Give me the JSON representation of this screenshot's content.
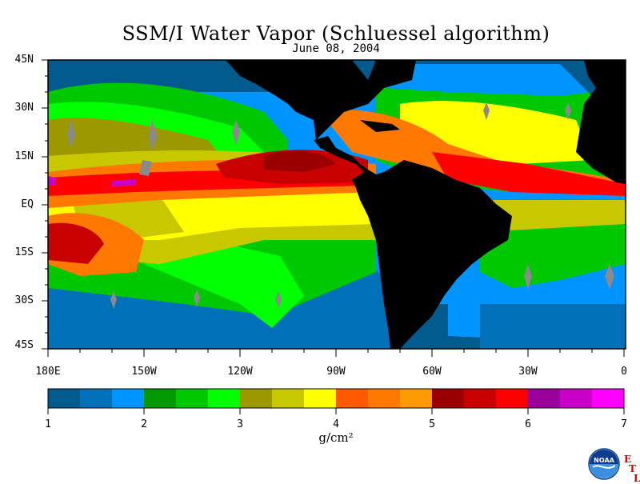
{
  "title": "SSM/I Water Vapor (Schluessel algorithm)",
  "date": "June 08, 2004",
  "lat_labels": [
    "45N",
    "30N",
    "15N",
    "EQ",
    "15S",
    "30S",
    "45S"
  ],
  "lon_labels": [
    "180E",
    "150W",
    "120W",
    "90W",
    "60W",
    "30W",
    "0"
  ],
  "colorbar": {
    "ticks": [
      "1",
      "2",
      "3",
      "4",
      "5",
      "6",
      "7"
    ],
    "unit": "g/cm²",
    "colors": [
      "#005a8c",
      "#0070b8",
      "#0094ff",
      "#009a00",
      "#00c800",
      "#00ff00",
      "#9a9a00",
      "#c8c800",
      "#ffff00",
      "#ff5a00",
      "#ff7800",
      "#ff9a00",
      "#9a0000",
      "#c80000",
      "#ff0000",
      "#9a009a",
      "#c800c8",
      "#ff00ff"
    ]
  },
  "land_color": "#000000",
  "missing_color": "#8a8a8a",
  "logo": {
    "name": "noaa-logo",
    "text": "NOAA"
  },
  "etl_letters": [
    "E",
    "T",
    "L"
  ]
}
